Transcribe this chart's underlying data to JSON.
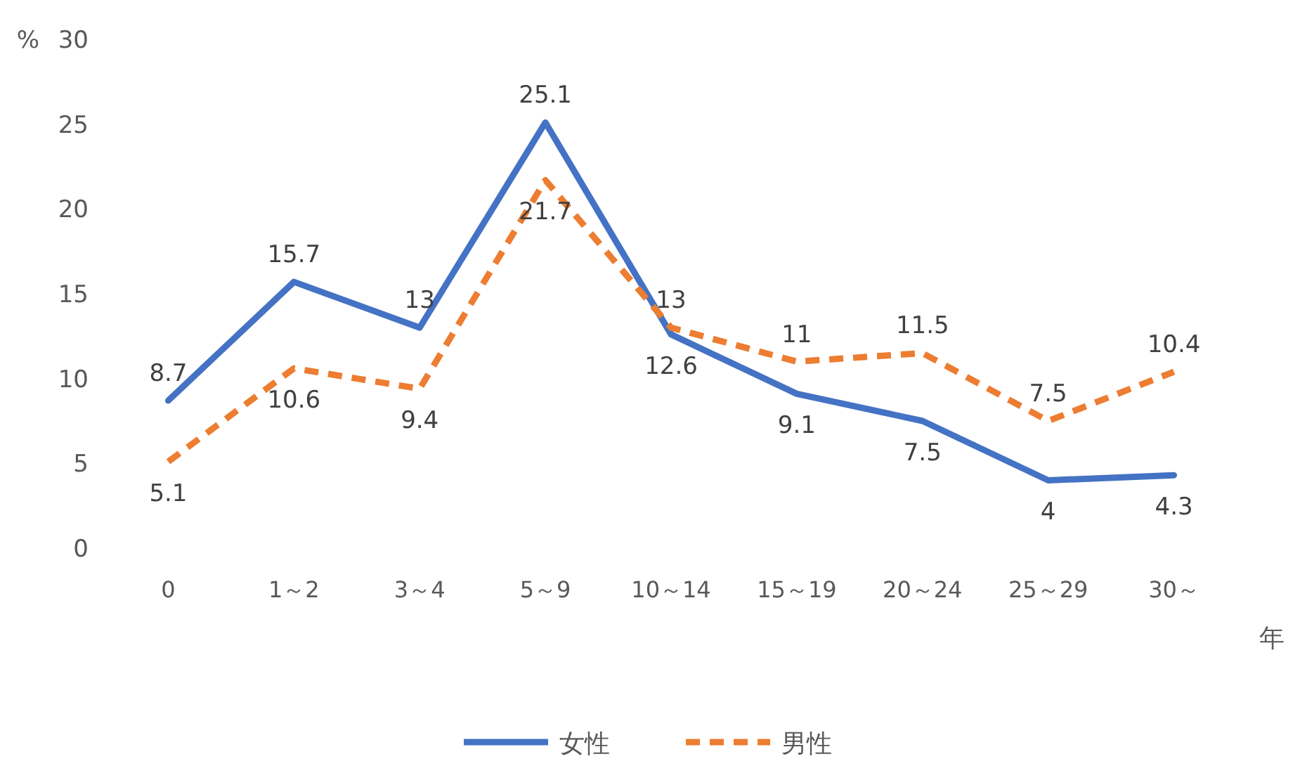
{
  "chart_data": {
    "type": "line",
    "ylabel": "%",
    "xlabel": "年",
    "categories": [
      "0",
      "1～2",
      "3～4",
      "5～9",
      "10～14",
      "15～19",
      "20～24",
      "25～29",
      "30～"
    ],
    "series": [
      {
        "name": "女性",
        "color": "#4472c4",
        "line_style": "solid",
        "values": [
          8.7,
          15.7,
          13,
          25.1,
          12.6,
          9.1,
          7.5,
          4,
          4.3
        ]
      },
      {
        "name": "男性",
        "color": "#ed7d31",
        "line_style": "dashed",
        "values": [
          5.1,
          10.6,
          9.4,
          21.7,
          13,
          11,
          11.5,
          7.5,
          10.4
        ]
      }
    ],
    "ylim": [
      0,
      30
    ],
    "yticks": [
      0,
      5,
      10,
      15,
      20,
      25,
      30
    ],
    "data_labels": true,
    "legend": "bottom"
  }
}
